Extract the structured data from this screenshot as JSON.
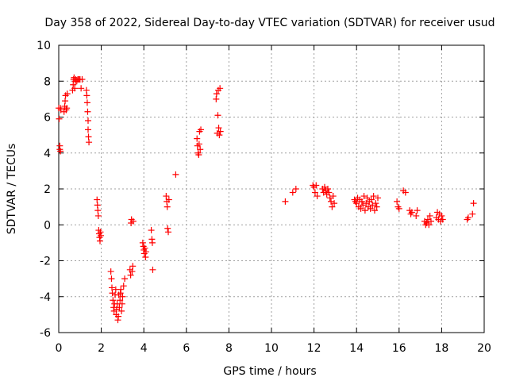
{
  "chart_data": {
    "type": "scatter",
    "title": "Day 358 of 2022, Sidereal Day-to-day VTEC variation (SDTVAR) for receiver usud",
    "xlabel": "GPS time / hours",
    "ylabel": "SDTVAR / TECUs",
    "xlim": [
      0,
      20
    ],
    "ylim": [
      -6,
      10
    ],
    "xticks": [
      0,
      2,
      4,
      6,
      8,
      10,
      12,
      14,
      16,
      18,
      20
    ],
    "yticks": [
      -6,
      -4,
      -2,
      0,
      2,
      4,
      6,
      8,
      10
    ],
    "grid": true,
    "marker": "+",
    "color": "#ff0000",
    "series": [
      {
        "name": "usud",
        "points": [
          [
            0.0,
            6.5
          ],
          [
            0.02,
            5.9
          ],
          [
            0.05,
            4.2
          ],
          [
            0.05,
            4.4
          ],
          [
            0.08,
            4.1
          ],
          [
            0.08,
            6.5
          ],
          [
            0.1,
            6.4
          ],
          [
            0.25,
            6.3
          ],
          [
            0.28,
            6.6
          ],
          [
            0.3,
            6.9
          ],
          [
            0.32,
            7.2
          ],
          [
            0.35,
            6.4
          ],
          [
            0.38,
            6.5
          ],
          [
            0.4,
            7.3
          ],
          [
            0.65,
            7.5
          ],
          [
            0.68,
            7.8
          ],
          [
            0.7,
            8.1
          ],
          [
            0.72,
            8.2
          ],
          [
            0.75,
            7.6
          ],
          [
            0.78,
            8.0
          ],
          [
            0.8,
            8.1
          ],
          [
            0.85,
            8.0
          ],
          [
            0.9,
            8.1
          ],
          [
            0.95,
            8.1
          ],
          [
            1.0,
            8.1
          ],
          [
            1.05,
            7.6
          ],
          [
            1.1,
            8.1
          ],
          [
            1.3,
            7.5
          ],
          [
            1.32,
            7.2
          ],
          [
            1.34,
            6.8
          ],
          [
            1.36,
            6.3
          ],
          [
            1.38,
            5.8
          ],
          [
            1.38,
            5.3
          ],
          [
            1.4,
            4.9
          ],
          [
            1.42,
            4.6
          ],
          [
            1.8,
            1.4
          ],
          [
            1.82,
            1.1
          ],
          [
            1.84,
            0.8
          ],
          [
            1.86,
            0.5
          ],
          [
            1.88,
            -0.3
          ],
          [
            1.9,
            -0.5
          ],
          [
            1.92,
            -0.7
          ],
          [
            1.94,
            -0.9
          ],
          [
            1.96,
            -0.4
          ],
          [
            1.98,
            -0.6
          ],
          [
            2.45,
            -2.6
          ],
          [
            2.48,
            -3.0
          ],
          [
            2.5,
            -3.5
          ],
          [
            2.52,
            -3.8
          ],
          [
            2.55,
            -4.2
          ],
          [
            2.58,
            -4.6
          ],
          [
            2.6,
            -4.8
          ],
          [
            2.62,
            -4.4
          ],
          [
            2.65,
            -3.9
          ],
          [
            2.68,
            -3.6
          ],
          [
            2.7,
            -5.0
          ],
          [
            2.72,
            -4.7
          ],
          [
            2.75,
            -4.4
          ],
          [
            2.78,
            -5.3
          ],
          [
            2.8,
            -5.1
          ],
          [
            2.82,
            -3.9
          ],
          [
            2.85,
            -4.6
          ],
          [
            2.88,
            -4.2
          ],
          [
            2.9,
            -3.8
          ],
          [
            2.92,
            -3.6
          ],
          [
            2.95,
            -4.8
          ],
          [
            2.98,
            -4.4
          ],
          [
            3.0,
            -4.0
          ],
          [
            3.05,
            -3.4
          ],
          [
            3.1,
            -3.0
          ],
          [
            3.35,
            -2.5
          ],
          [
            3.38,
            -2.8
          ],
          [
            3.4,
            0.1
          ],
          [
            3.42,
            0.3
          ],
          [
            3.45,
            -2.6
          ],
          [
            3.48,
            -2.3
          ],
          [
            3.5,
            0.2
          ],
          [
            3.95,
            -1.0
          ],
          [
            3.98,
            -1.2
          ],
          [
            4.0,
            -1.4
          ],
          [
            4.02,
            -1.6
          ],
          [
            4.05,
            -1.3
          ],
          [
            4.08,
            -1.8
          ],
          [
            4.1,
            -1.5
          ],
          [
            4.35,
            -0.3
          ],
          [
            4.38,
            -0.8
          ],
          [
            4.4,
            -1.0
          ],
          [
            4.42,
            -2.5
          ],
          [
            5.05,
            1.6
          ],
          [
            5.08,
            1.3
          ],
          [
            5.1,
            1.0
          ],
          [
            5.12,
            -0.2
          ],
          [
            5.15,
            -0.4
          ],
          [
            5.18,
            1.4
          ],
          [
            5.5,
            2.8
          ],
          [
            6.5,
            4.8
          ],
          [
            6.52,
            4.4
          ],
          [
            6.55,
            4.0
          ],
          [
            6.58,
            3.9
          ],
          [
            6.6,
            4.5
          ],
          [
            6.62,
            5.2
          ],
          [
            6.65,
            4.2
          ],
          [
            6.68,
            5.3
          ],
          [
            7.4,
            7.0
          ],
          [
            7.42,
            7.3
          ],
          [
            7.45,
            5.1
          ],
          [
            7.48,
            6.1
          ],
          [
            7.5,
            7.5
          ],
          [
            7.52,
            5.4
          ],
          [
            7.55,
            5.0
          ],
          [
            7.58,
            7.6
          ],
          [
            7.6,
            5.2
          ],
          [
            10.65,
            1.3
          ],
          [
            11.0,
            1.8
          ],
          [
            11.15,
            2.0
          ],
          [
            11.95,
            2.2
          ],
          [
            12.0,
            2.1
          ],
          [
            12.05,
            1.8
          ],
          [
            12.1,
            2.2
          ],
          [
            12.15,
            1.6
          ],
          [
            12.4,
            2.0
          ],
          [
            12.45,
            1.8
          ],
          [
            12.5,
            2.1
          ],
          [
            12.55,
            1.9
          ],
          [
            12.6,
            1.7
          ],
          [
            12.65,
            2.0
          ],
          [
            12.7,
            1.8
          ],
          [
            12.75,
            1.5
          ],
          [
            12.8,
            1.3
          ],
          [
            12.85,
            1.0
          ],
          [
            12.9,
            1.6
          ],
          [
            12.95,
            1.2
          ],
          [
            13.9,
            1.4
          ],
          [
            13.95,
            1.3
          ],
          [
            14.0,
            1.2
          ],
          [
            14.05,
            1.5
          ],
          [
            14.1,
            1.0
          ],
          [
            14.15,
            1.4
          ],
          [
            14.2,
            0.9
          ],
          [
            14.25,
            1.3
          ],
          [
            14.3,
            1.1
          ],
          [
            14.35,
            1.6
          ],
          [
            14.4,
            0.8
          ],
          [
            14.45,
            1.2
          ],
          [
            14.5,
            1.5
          ],
          [
            14.55,
            1.0
          ],
          [
            14.6,
            1.3
          ],
          [
            14.65,
            0.9
          ],
          [
            14.7,
            1.4
          ],
          [
            14.75,
            1.1
          ],
          [
            14.8,
            1.6
          ],
          [
            14.85,
            0.8
          ],
          [
            14.9,
            1.2
          ],
          [
            14.95,
            1.0
          ],
          [
            15.0,
            1.5
          ],
          [
            15.9,
            1.3
          ],
          [
            15.95,
            1.0
          ],
          [
            16.0,
            0.9
          ],
          [
            16.2,
            1.9
          ],
          [
            16.3,
            1.8
          ],
          [
            16.5,
            0.8
          ],
          [
            16.55,
            0.6
          ],
          [
            16.6,
            0.7
          ],
          [
            16.8,
            0.5
          ],
          [
            16.85,
            0.8
          ],
          [
            17.2,
            0.2
          ],
          [
            17.25,
            0.0
          ],
          [
            17.3,
            0.1
          ],
          [
            17.35,
            0.3
          ],
          [
            17.4,
            0.0
          ],
          [
            17.45,
            0.5
          ],
          [
            17.5,
            0.2
          ],
          [
            17.75,
            0.4
          ],
          [
            17.8,
            0.7
          ],
          [
            17.85,
            0.3
          ],
          [
            17.9,
            0.6
          ],
          [
            17.95,
            0.2
          ],
          [
            18.0,
            0.5
          ],
          [
            18.05,
            0.3
          ],
          [
            19.2,
            0.3
          ],
          [
            19.25,
            0.4
          ],
          [
            19.45,
            0.6
          ],
          [
            19.5,
            1.2
          ]
        ]
      }
    ]
  }
}
